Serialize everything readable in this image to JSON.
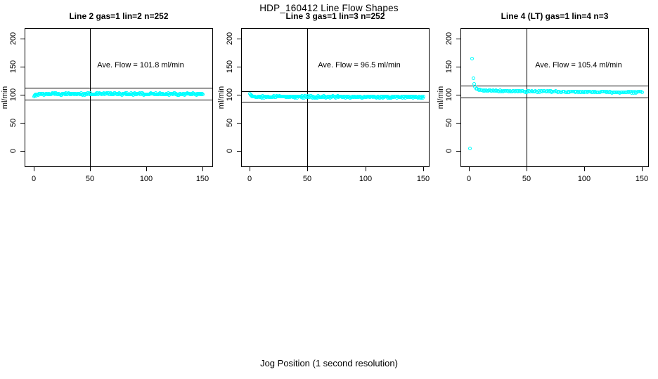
{
  "figure": {
    "title": "HDP_160412  Line Flow Shapes",
    "xlabel": "Jog Position (1 second resolution)",
    "background_color": "#FFFFFF",
    "axis_color": "#000000"
  },
  "chart_data": [
    {
      "type": "scatter",
      "title": "Line 2 gas=1 lin=2 n=252",
      "ylabel": "ml/min",
      "xticks": [
        0,
        50,
        100,
        150
      ],
      "yticks": [
        0,
        50,
        100,
        150,
        200
      ],
      "xlim": [
        0,
        150
      ],
      "ylim": [
        0,
        200
      ],
      "grid": false,
      "point_color": "#00FFFF",
      "point_style": "open-circle",
      "n": 252,
      "ave_flow_ml_min": 101.8,
      "annotation": {
        "text": "Ave. Flow =  101.8  ml/min",
        "x": 95,
        "y": 152
      },
      "ref_hlines": [
        112.0,
        91.6
      ],
      "ref_vline": 50,
      "band_profile": [
        [
          0,
          96.5
        ],
        [
          1,
          98.5
        ],
        [
          2,
          100.0
        ],
        [
          4,
          101.0
        ],
        [
          10,
          101.5
        ],
        [
          150,
          101.5
        ]
      ],
      "band_x_range": [
        0,
        150
      ],
      "band_jitter": 1.6,
      "outliers": []
    },
    {
      "type": "scatter",
      "title": "Line 3 gas=1 lin=3 n=252",
      "ylabel": "ml/min",
      "xticks": [
        0,
        50,
        100,
        150
      ],
      "yticks": [
        0,
        50,
        100,
        150,
        200
      ],
      "xlim": [
        0,
        150
      ],
      "ylim": [
        0,
        200
      ],
      "grid": false,
      "point_color": "#00FFFF",
      "point_style": "open-circle",
      "n": 252,
      "ave_flow_ml_min": 96.5,
      "annotation": {
        "text": "Ave. Flow =  96.5  ml/min",
        "x": 95,
        "y": 152
      },
      "ref_hlines": [
        106.2,
        86.9
      ],
      "ref_vline": 50,
      "band_profile": [
        [
          0,
          100.8
        ],
        [
          1,
          99.5
        ],
        [
          2,
          98.0
        ],
        [
          4,
          96.8
        ],
        [
          8,
          96.3
        ],
        [
          150,
          96.0
        ]
      ],
      "band_x_range": [
        0,
        150
      ],
      "band_jitter": 1.5,
      "outliers": []
    },
    {
      "type": "scatter",
      "title": "Line 4 (LT) gas=1 lin=4 n=3",
      "ylabel": "ml/min",
      "xticks": [
        0,
        50,
        100,
        150
      ],
      "yticks": [
        0,
        50,
        100,
        150,
        200
      ],
      "xlim": [
        0,
        150
      ],
      "ylim": [
        0,
        200
      ],
      "grid": false,
      "point_color": "#00FFFF",
      "point_style": "open-circle",
      "n": 3,
      "ave_flow_ml_min": 105.4,
      "annotation": {
        "text": "Ave. Flow =  105.4  ml/min",
        "x": 95,
        "y": 152
      },
      "ref_hlines": [
        115.9,
        94.9
      ],
      "ref_vline": 50,
      "band_profile": [
        [
          4.5,
          118
        ],
        [
          5.5,
          113
        ],
        [
          7,
          110
        ],
        [
          10,
          108
        ],
        [
          20,
          107
        ],
        [
          50,
          106
        ],
        [
          100,
          105
        ],
        [
          150,
          104.3
        ]
      ],
      "band_x_range": [
        4.5,
        150
      ],
      "band_jitter": 1.1,
      "band_points_drawn": 170,
      "outliers": [
        [
          1,
          4
        ],
        [
          3,
          165
        ],
        [
          4,
          130
        ]
      ]
    }
  ]
}
